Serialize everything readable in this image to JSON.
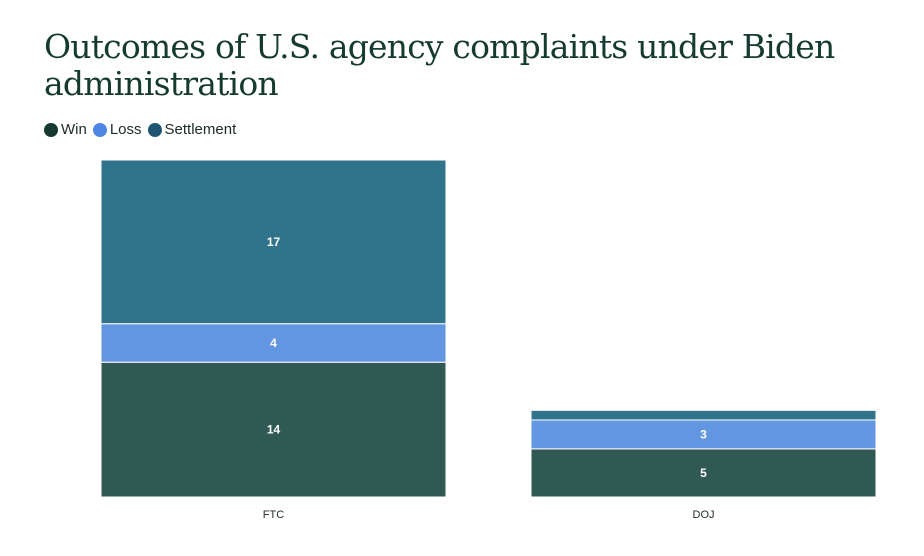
{
  "title": "Outcomes of U.S. agency complaints under Biden administration",
  "legend": [
    {
      "label": "Win",
      "color": "#153a31"
    },
    {
      "label": "Loss",
      "color": "#4f86e6"
    },
    {
      "label": "Settlement",
      "color": "#1f5573"
    }
  ],
  "chart_data": {
    "type": "bar",
    "stacked": true,
    "title": "Outcomes of U.S. agency complaints under Biden administration",
    "categories": [
      "FTC",
      "DOJ"
    ],
    "series": [
      {
        "name": "Win",
        "values": [
          14,
          5
        ],
        "labels": [
          "14",
          "5"
        ],
        "fill": "#315953"
      },
      {
        "name": "Loss",
        "values": [
          4,
          3
        ],
        "labels": [
          "4",
          "3"
        ],
        "fill": "#6396e1"
      },
      {
        "name": "Settlement",
        "values": [
          17,
          1
        ],
        "labels": [
          "17",
          ""
        ],
        "fill": "#32738c"
      }
    ],
    "ylim": [
      0,
      35
    ],
    "xlabel": "",
    "ylabel": ""
  }
}
